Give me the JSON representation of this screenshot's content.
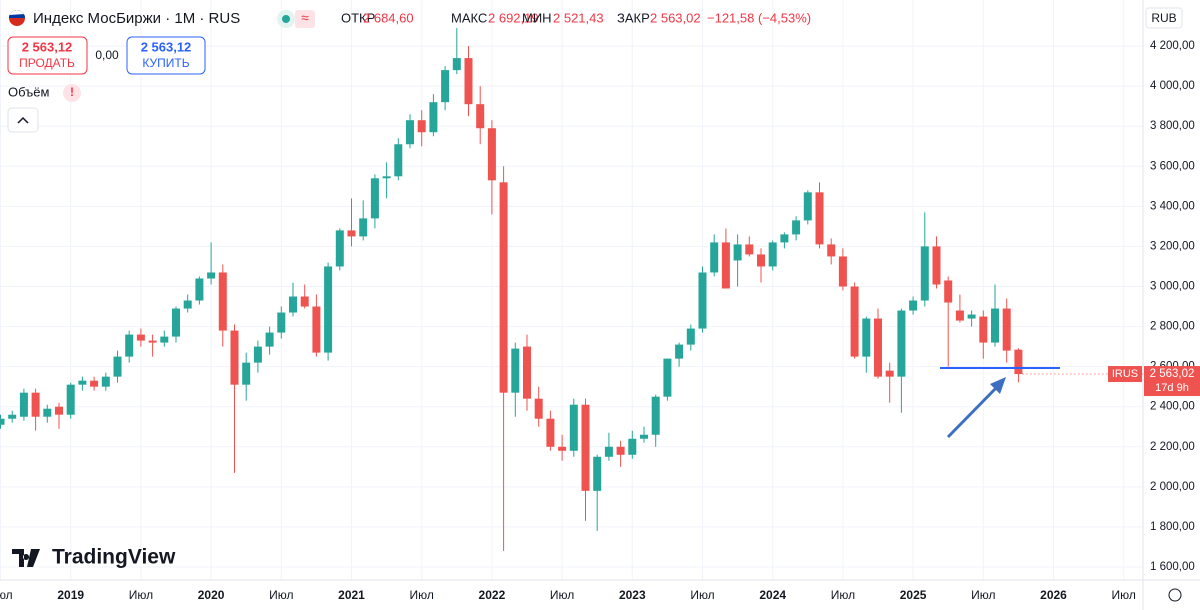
{
  "header": {
    "title": "Индекс МосБиржи · 1M · RUS",
    "ohlc": [
      {
        "label": "ОТКР",
        "value": "2 684,60"
      },
      {
        "label": "МАКС",
        "value": "2 692,19"
      },
      {
        "label": "МИН",
        "value": "2 521,43"
      },
      {
        "label": "ЗАКР",
        "value": "2 563,02"
      }
    ],
    "change": "−121,58 (−4,53%)",
    "sell": {
      "price": "2 563,12",
      "label": "ПРОДАТЬ"
    },
    "spread": "0,00",
    "buy": {
      "price": "2 563,12",
      "label": "КУПИТЬ"
    },
    "volume": "Объём",
    "volume_alert": "!",
    "currency": "RUB",
    "logo": "TradingView"
  },
  "chart_data": {
    "type": "candlestick",
    "categories": [
      "Июл",
      null,
      null,
      null,
      null,
      null,
      "2019",
      null,
      null,
      null,
      null,
      null,
      "Июл",
      null,
      null,
      null,
      null,
      null,
      "2020",
      null,
      null,
      null,
      null,
      null,
      "Июл",
      null,
      null,
      null,
      null,
      null,
      "2021",
      null,
      null,
      null,
      null,
      null,
      "Июл",
      null,
      null,
      null,
      null,
      null,
      "2022",
      null,
      null,
      null,
      null,
      null,
      "Июл",
      null,
      null,
      null,
      null,
      null,
      "2023",
      null,
      null,
      null,
      null,
      null,
      "Июл",
      null,
      null,
      null,
      null,
      null,
      "2024",
      null,
      null,
      null,
      null,
      null,
      "Июл",
      null,
      null,
      null,
      null,
      null,
      "2025",
      null,
      null,
      null,
      null,
      null,
      "Июл",
      null,
      null,
      null,
      null,
      null,
      "2026",
      null,
      null,
      null,
      null,
      null,
      "Июл"
    ],
    "open": [
      2310,
      2340,
      2350,
      2470,
      2350,
      2400,
      2360,
      2510,
      2530,
      2500,
      2550,
      2650,
      2760,
      2730,
      2720,
      2750,
      2890,
      2930,
      3040,
      3070,
      2780,
      2510,
      2620,
      2700,
      2770,
      2870,
      2950,
      2900,
      2670,
      3100,
      3280,
      3250,
      3340,
      3540,
      3550,
      3710,
      3830,
      3770,
      3920,
      4080,
      4140,
      3910,
      3790,
      3520,
      2470,
      2700,
      2440,
      2340,
      2200,
      2180,
      2410,
      1980,
      2150,
      2200,
      2160,
      2240,
      2260,
      2450,
      2640,
      2710,
      2790,
      3070,
      3220,
      3130,
      3210,
      3160,
      3100,
      3220,
      3260,
      3330,
      3470,
      3210,
      3150,
      3000,
      2650,
      2840,
      2580,
      2550,
      2880,
      2930,
      3200,
      3030,
      2880,
      2840,
      2850,
      2720,
      2890,
      2684.6,
      null,
      null,
      null,
      null,
      null,
      null,
      null,
      null,
      null
    ],
    "high": [
      2360,
      2380,
      2490,
      2490,
      2410,
      2420,
      2520,
      2550,
      2550,
      2570,
      2680,
      2780,
      2790,
      2760,
      2780,
      2900,
      2960,
      3050,
      3220,
      3110,
      2810,
      2670,
      2730,
      2800,
      2900,
      3020,
      3010,
      2960,
      3120,
      3290,
      3440,
      3430,
      3560,
      3620,
      3740,
      3860,
      3880,
      3960,
      4100,
      4290,
      4200,
      4000,
      3830,
      3600,
      2720,
      2760,
      2500,
      2380,
      2260,
      2440,
      2440,
      2160,
      2270,
      2230,
      2280,
      2300,
      2460,
      2640,
      2720,
      2810,
      3100,
      3260,
      3290,
      3260,
      3250,
      3190,
      3230,
      3270,
      3350,
      3480,
      3520,
      3240,
      3190,
      3020,
      2850,
      2890,
      2620,
      2890,
      2950,
      3370,
      3250,
      3050,
      2960,
      2880,
      2880,
      3010,
      2940,
      2692.19,
      null,
      null,
      null,
      null,
      null,
      null,
      null,
      null,
      null
    ],
    "low": [
      2290,
      2320,
      2330,
      2280,
      2320,
      2290,
      2340,
      2480,
      2480,
      2480,
      2520,
      2620,
      2700,
      2650,
      2700,
      2720,
      2870,
      2910,
      3010,
      2700,
      2070,
      2430,
      2570,
      2660,
      2740,
      2850,
      2890,
      2650,
      2630,
      3080,
      3200,
      3230,
      3290,
      3440,
      3530,
      3690,
      3700,
      3750,
      3880,
      4060,
      3850,
      3710,
      3360,
      1680,
      2350,
      2380,
      2300,
      2180,
      2130,
      2150,
      1830,
      1780,
      2130,
      2100,
      2140,
      2220,
      2200,
      2430,
      2600,
      2680,
      2770,
      3050,
      2990,
      3000,
      3150,
      3020,
      3080,
      3190,
      3230,
      3310,
      3190,
      3110,
      2980,
      2640,
      2570,
      2540,
      2420,
      2370,
      2860,
      2900,
      2990,
      2600,
      2820,
      2800,
      2640,
      2700,
      2620,
      2521.43,
      null,
      null,
      null,
      null,
      null,
      null,
      null,
      null,
      null
    ],
    "close": [
      2340,
      2360,
      2470,
      2350,
      2390,
      2360,
      2510,
      2530,
      2500,
      2550,
      2650,
      2760,
      2730,
      2720,
      2750,
      2890,
      2930,
      3040,
      3070,
      2780,
      2510,
      2620,
      2700,
      2770,
      2870,
      2950,
      2900,
      2670,
      3100,
      3280,
      3250,
      3340,
      3540,
      3550,
      3710,
      3830,
      3770,
      3920,
      4080,
      4140,
      3910,
      3790,
      3530,
      2470,
      2690,
      2440,
      2340,
      2200,
      2180,
      2410,
      1980,
      2150,
      2200,
      2160,
      2240,
      2260,
      2450,
      2640,
      2710,
      2790,
      3070,
      3220,
      2990,
      3210,
      3160,
      3100,
      3220,
      3260,
      3330,
      3470,
      3210,
      3150,
      3000,
      2650,
      2840,
      2550,
      2550,
      2880,
      2930,
      3200,
      3010,
      2920,
      2830,
      2860,
      2720,
      2890,
      2680,
      2563.02,
      null,
      null,
      null,
      null,
      null,
      null,
      null,
      null,
      null
    ],
    "up_color": "#26a69a",
    "down_color": "#ef5350",
    "ylim": [
      1535,
      4430
    ],
    "yticks": [
      {
        "value": 1600,
        "label": "1 600,00"
      },
      {
        "value": 1800,
        "label": "1 800,00"
      },
      {
        "value": 2000,
        "label": "2 000,00"
      },
      {
        "value": 2200,
        "label": "2 200,00"
      },
      {
        "value": 2400,
        "label": "2 400,00"
      },
      {
        "value": 2600,
        "label": "2 600,00"
      },
      {
        "value": 2800,
        "label": "2 800,00"
      },
      {
        "value": 3000,
        "label": "3 000,00"
      },
      {
        "value": 3200,
        "label": "3 200,00"
      },
      {
        "value": 3400,
        "label": "3 400,00"
      },
      {
        "value": 3600,
        "label": "3 600,00"
      },
      {
        "value": 3800,
        "label": "3 800,00"
      },
      {
        "value": 4000,
        "label": "4 000,00"
      },
      {
        "value": 4200,
        "label": "4 200,00"
      }
    ],
    "grid": true,
    "price_tag": {
      "symbol": "IRUS",
      "price": "2 563,02",
      "countdown": "17d 9h"
    }
  }
}
